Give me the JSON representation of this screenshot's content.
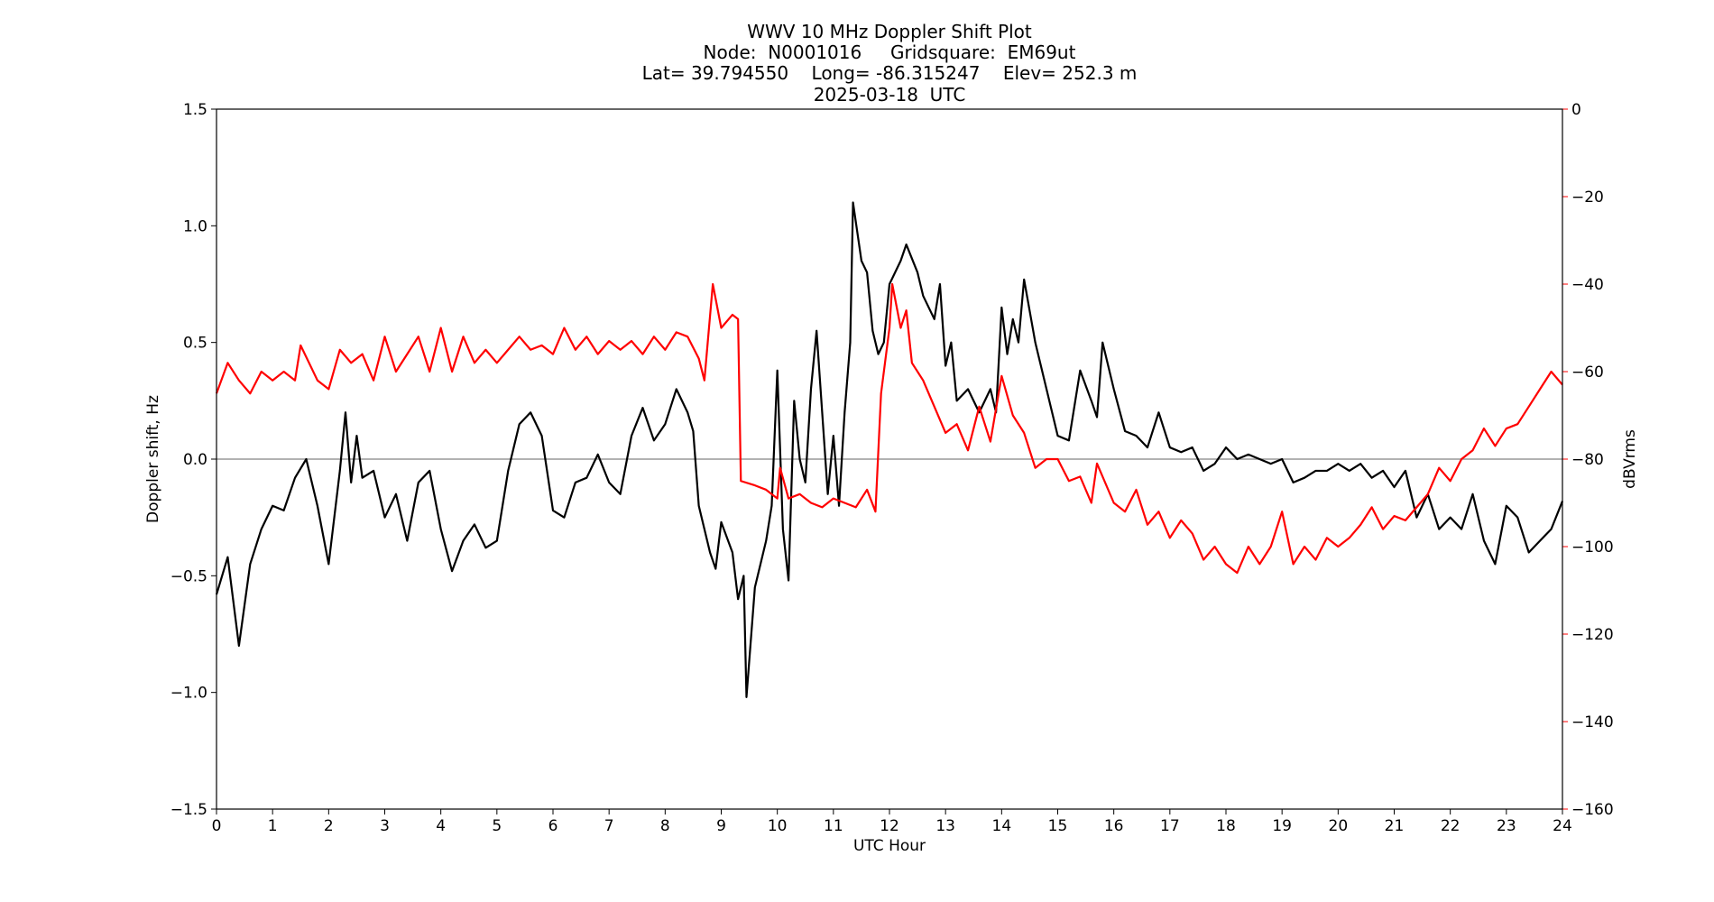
{
  "chart_data": {
    "type": "line",
    "title": [
      "WWV 10 MHz Doppler Shift Plot",
      "Node:  N0001016     Gridsquare:  EM69ut",
      "Lat= 39.794550    Long= -86.315247    Elev= 252.3 m",
      "2025-03-18  UTC"
    ],
    "xlabel": "UTC Hour",
    "ylabel": "Doppler shift, Hz",
    "y2label": "dBVrms",
    "y2color": "#ff0000",
    "xlim": [
      0,
      24
    ],
    "xticks": [
      0,
      1,
      2,
      3,
      4,
      5,
      6,
      7,
      8,
      9,
      10,
      11,
      12,
      13,
      14,
      15,
      16,
      17,
      18,
      19,
      20,
      21,
      22,
      23,
      24
    ],
    "ylim": [
      -1.5,
      1.5
    ],
    "yticks": [
      {
        "value": -1.5,
        "label": "−1.5"
      },
      {
        "value": -1.0,
        "label": "−1.0"
      },
      {
        "value": -0.5,
        "label": "−0.5"
      },
      {
        "value": 0,
        "label": "0.0"
      },
      0.5,
      {
        "value": 1.0,
        "label": "1.0"
      },
      1.5
    ],
    "y2lim": [
      -160,
      0
    ],
    "y2ticks": [
      {
        "value": -160,
        "label": "−160"
      },
      {
        "value": -140,
        "label": "−140"
      },
      {
        "value": -120,
        "label": "−120"
      },
      {
        "value": -100,
        "label": "−100"
      },
      {
        "value": -80,
        "label": "−80"
      },
      {
        "value": -60,
        "label": "−60"
      },
      {
        "value": -40,
        "label": "−40"
      },
      {
        "value": -20,
        "label": "−20"
      },
      0
    ],
    "hline": 0,
    "series": [
      {
        "color": "#000000",
        "x": [
          0,
          0.2,
          0.4,
          0.6,
          0.8,
          1.0,
          1.2,
          1.4,
          1.6,
          1.8,
          2.0,
          2.2,
          2.3,
          2.4,
          2.5,
          2.6,
          2.8,
          3.0,
          3.2,
          3.4,
          3.6,
          3.8,
          4.0,
          4.2,
          4.4,
          4.6,
          4.8,
          5.0,
          5.2,
          5.4,
          5.6,
          5.8,
          6.0,
          6.2,
          6.4,
          6.6,
          6.8,
          7.0,
          7.2,
          7.4,
          7.6,
          7.8,
          8.0,
          8.2,
          8.4,
          8.5,
          8.6,
          8.8,
          8.9,
          9.0,
          9.2,
          9.3,
          9.4,
          9.45,
          9.6,
          9.8,
          9.9,
          10.0,
          10.1,
          10.2,
          10.3,
          10.4,
          10.5,
          10.6,
          10.7,
          10.8,
          10.9,
          11.0,
          11.1,
          11.2,
          11.3,
          11.35,
          11.5,
          11.6,
          11.7,
          11.8,
          11.9,
          12.0,
          12.2,
          12.3,
          12.5,
          12.6,
          12.8,
          12.9,
          13.0,
          13.1,
          13.2,
          13.4,
          13.6,
          13.8,
          13.9,
          14.0,
          14.1,
          14.2,
          14.3,
          14.4,
          14.6,
          14.8,
          15.0,
          15.2,
          15.4,
          15.6,
          15.7,
          15.8,
          16.0,
          16.2,
          16.4,
          16.6,
          16.8,
          17.0,
          17.2,
          17.4,
          17.6,
          17.8,
          18.0,
          18.2,
          18.4,
          18.6,
          18.8,
          19.0,
          19.2,
          19.4,
          19.6,
          19.8,
          20.0,
          20.2,
          20.4,
          20.6,
          20.8,
          21.0,
          21.2,
          21.4,
          21.6,
          21.8,
          22.0,
          22.2,
          22.4,
          22.6,
          22.8,
          23.0,
          23.2,
          23.4,
          23.6,
          23.8,
          24.0
        ],
        "values": [
          -0.58,
          -0.42,
          -0.8,
          -0.45,
          -0.3,
          -0.2,
          -0.22,
          -0.08,
          0.0,
          -0.2,
          -0.45,
          -0.05,
          0.2,
          -0.1,
          0.1,
          -0.08,
          -0.05,
          -0.25,
          -0.15,
          -0.35,
          -0.1,
          -0.05,
          -0.3,
          -0.48,
          -0.35,
          -0.28,
          -0.38,
          -0.35,
          -0.05,
          0.15,
          0.2,
          0.1,
          -0.22,
          -0.25,
          -0.1,
          -0.08,
          0.02,
          -0.1,
          -0.15,
          0.1,
          0.22,
          0.08,
          0.15,
          0.3,
          0.2,
          0.12,
          -0.2,
          -0.4,
          -0.47,
          -0.27,
          -0.4,
          -0.6,
          -0.5,
          -1.02,
          -0.55,
          -0.35,
          -0.2,
          0.38,
          -0.3,
          -0.52,
          0.25,
          0.0,
          -0.1,
          0.3,
          0.55,
          0.2,
          -0.15,
          0.1,
          -0.2,
          0.2,
          0.5,
          1.1,
          0.85,
          0.8,
          0.55,
          0.45,
          0.5,
          0.75,
          0.85,
          0.92,
          0.8,
          0.7,
          0.6,
          0.75,
          0.4,
          0.5,
          0.25,
          0.3,
          0.2,
          0.3,
          0.2,
          0.65,
          0.45,
          0.6,
          0.5,
          0.77,
          0.5,
          0.3,
          0.1,
          0.08,
          0.38,
          0.25,
          0.18,
          0.5,
          0.3,
          0.12,
          0.1,
          0.05,
          0.2,
          0.05,
          0.03,
          0.05,
          -0.05,
          -0.02,
          0.05,
          0.0,
          0.02,
          0.0,
          -0.02,
          0.0,
          -0.1,
          -0.08,
          -0.05,
          -0.05,
          -0.02,
          -0.05,
          -0.02,
          -0.08,
          -0.05,
          -0.12,
          -0.05,
          -0.25,
          -0.15,
          -0.3,
          -0.25,
          -0.3,
          -0.15,
          -0.35,
          -0.45,
          -0.2,
          -0.25,
          -0.4,
          -0.35,
          -0.3,
          -0.18
        ]
      },
      {
        "color": "#ff0000",
        "axis": "y2",
        "x": [
          0,
          0.2,
          0.4,
          0.6,
          0.8,
          1.0,
          1.2,
          1.4,
          1.5,
          1.8,
          2.0,
          2.2,
          2.4,
          2.6,
          2.8,
          3.0,
          3.2,
          3.4,
          3.6,
          3.8,
          4.0,
          4.2,
          4.4,
          4.6,
          4.8,
          5.0,
          5.2,
          5.4,
          5.6,
          5.8,
          6.0,
          6.2,
          6.4,
          6.6,
          6.8,
          7.0,
          7.2,
          7.4,
          7.6,
          7.8,
          8.0,
          8.2,
          8.4,
          8.6,
          8.7,
          8.85,
          9.0,
          9.2,
          9.3,
          9.35,
          9.6,
          9.8,
          10.0,
          10.05,
          10.2,
          10.4,
          10.6,
          10.8,
          11.0,
          11.2,
          11.4,
          11.6,
          11.75,
          11.85,
          12.0,
          12.05,
          12.2,
          12.3,
          12.4,
          12.6,
          12.8,
          13.0,
          13.2,
          13.4,
          13.6,
          13.8,
          14.0,
          14.2,
          14.4,
          14.6,
          14.8,
          15.0,
          15.2,
          15.4,
          15.6,
          15.7,
          16.0,
          16.2,
          16.4,
          16.6,
          16.8,
          17.0,
          17.2,
          17.4,
          17.6,
          17.8,
          18.0,
          18.2,
          18.4,
          18.6,
          18.8,
          19.0,
          19.2,
          19.4,
          19.6,
          19.8,
          20.0,
          20.2,
          20.4,
          20.6,
          20.8,
          21.0,
          21.2,
          21.4,
          21.6,
          21.8,
          22.0,
          22.2,
          22.4,
          22.6,
          22.8,
          23.0,
          23.2,
          23.4,
          23.6,
          23.8,
          24.0
        ],
        "values": [
          -65,
          -58,
          -62,
          -65,
          -60,
          -62,
          -60,
          -62,
          -54,
          -62,
          -64,
          -55,
          -58,
          -56,
          -62,
          -52,
          -60,
          -56,
          -52,
          -60,
          -50,
          -60,
          -52,
          -58,
          -55,
          -58,
          -55,
          -52,
          -55,
          -54,
          -56,
          -50,
          -55,
          -52,
          -56,
          -53,
          -55,
          -53,
          -56,
          -52,
          -55,
          -51,
          -52,
          -57,
          -62,
          -40,
          -50,
          -47,
          -48,
          -85,
          -86,
          -87,
          -89,
          -82,
          -89,
          -88,
          -90,
          -91,
          -89,
          -90,
          -91,
          -87,
          -92,
          -65,
          -50,
          -40,
          -50,
          -46,
          -58,
          -62,
          -68,
          -74,
          -72,
          -78,
          -68,
          -76,
          -61,
          -70,
          -74,
          -82,
          -80,
          -80,
          -85,
          -84,
          -90,
          -81,
          -90,
          -92,
          -87,
          -95,
          -92,
          -98,
          -94,
          -97,
          -103,
          -100,
          -104,
          -106,
          -100,
          -104,
          -100,
          -92,
          -104,
          -100,
          -103,
          -98,
          -100,
          -98,
          -95,
          -91,
          -96,
          -93,
          -94,
          -91,
          -88,
          -82,
          -85,
          -80,
          -78,
          -73,
          -77,
          -73,
          -72,
          -68,
          -64,
          -60,
          -63
        ]
      }
    ]
  }
}
